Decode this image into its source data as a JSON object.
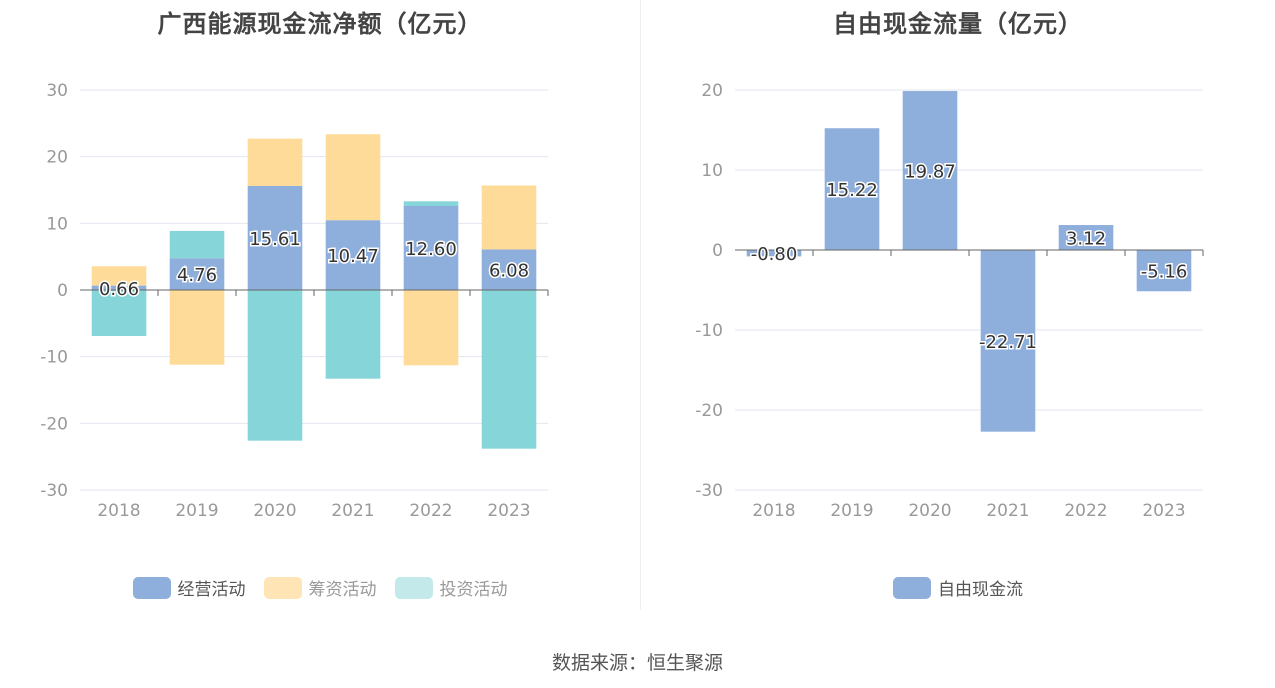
{
  "source": "数据来源：恒生聚源",
  "chart_data": [
    {
      "type": "bar",
      "stacked": true,
      "title": "广西能源现金流净额（亿元）",
      "categories": [
        "2018",
        "2019",
        "2020",
        "2021",
        "2022",
        "2023"
      ],
      "ylim": [
        -30,
        30
      ],
      "yticks": [
        30,
        20,
        10,
        0,
        -10,
        -20,
        -30
      ],
      "grid": true,
      "legend_position": "bottom",
      "series": [
        {
          "name": "经营活动",
          "color": "#8eaedc",
          "values": [
            0.66,
            4.76,
            15.61,
            10.47,
            12.6,
            6.08
          ],
          "labels": [
            "0.66",
            "4.76",
            "15.61",
            "10.47",
            "12.60",
            "6.08"
          ]
        },
        {
          "name": "筹资活动",
          "color": "#ffdb9a",
          "values": [
            2.9,
            -11.2,
            7.1,
            12.9,
            -11.3,
            9.6
          ]
        },
        {
          "name": "投资活动",
          "color": "#86d5d9",
          "values": [
            -6.9,
            4.1,
            -22.6,
            -13.3,
            0.7,
            -23.8
          ]
        }
      ]
    },
    {
      "type": "bar",
      "title": "自由现金流量（亿元）",
      "categories": [
        "2018",
        "2019",
        "2020",
        "2021",
        "2022",
        "2023"
      ],
      "ylim": [
        -30,
        20
      ],
      "yticks": [
        20,
        10,
        0,
        -10,
        -20,
        -30
      ],
      "grid": true,
      "legend_position": "bottom",
      "series": [
        {
          "name": "自由现金流",
          "color": "#8eaedc",
          "values": [
            -0.8,
            15.22,
            19.87,
            -22.71,
            3.12,
            -5.16
          ],
          "labels": [
            "-0.80",
            "15.22",
            "19.87",
            "-22.71",
            "3.12",
            "-5.16"
          ]
        }
      ]
    }
  ]
}
